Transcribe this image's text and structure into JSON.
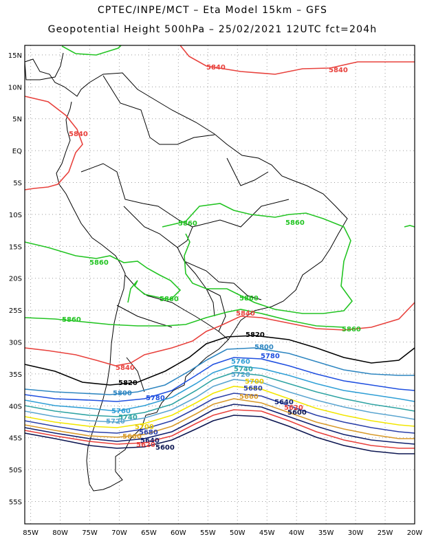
{
  "title": {
    "line1": "CPTEC/INPE/MCT –  Eta Model 15km – GFS",
    "line2": "Geopotential Height 500hPa – 25/02/2021 12UTC fct=204h"
  },
  "map": {
    "lat_ticks": [
      "15N",
      "10N",
      "5N",
      "EQ",
      "5S",
      "10S",
      "15S",
      "20S",
      "25S",
      "30S",
      "35S",
      "40S",
      "45S",
      "50S",
      "55S"
    ],
    "lon_ticks": [
      "85W",
      "80W",
      "75W",
      "70W",
      "65W",
      "60W",
      "55W",
      "50W",
      "45W",
      "40W",
      "35W",
      "30W",
      "25W",
      "20W"
    ],
    "extent": {
      "lon": [
        -86,
        -20
      ],
      "lat": [
        -58.5,
        16.5
      ]
    },
    "colors": {
      "land_border": "#000000",
      "grid": "#9a9a9a",
      "frame": "#000000"
    },
    "contours": [
      {
        "value": 5840,
        "color": "#e8413c",
        "labels": [
          "5840",
          "5840",
          "5840",
          "5840",
          "5840"
        ]
      },
      {
        "value": 5860,
        "color": "#22c422",
        "labels": [
          "5860",
          "5860",
          "5860",
          "5860",
          "5860",
          "5860",
          "5860",
          "5860"
        ]
      },
      {
        "value": 5820,
        "color": "#000000",
        "labels": [
          "5820",
          "5820"
        ]
      },
      {
        "value": 5800,
        "color": "#2e86c1",
        "labels": [
          "5800",
          "5800"
        ]
      },
      {
        "value": 5780,
        "color": "#1f4fe0",
        "labels": [
          "5780",
          "5780"
        ]
      },
      {
        "value": 5760,
        "color": "#2f9fd6",
        "labels": [
          "5760",
          "5760"
        ]
      },
      {
        "value": 5740,
        "color": "#2ea3a3",
        "labels": [
          "5740",
          "5740"
        ]
      },
      {
        "value": 5720,
        "color": "#5aa5d0",
        "labels": [
          "5720",
          "5720"
        ]
      },
      {
        "value": 5700,
        "color": "#f2e600",
        "labels": [
          "5700",
          "5700"
        ]
      },
      {
        "value": 5680,
        "color": "#2a3fa8",
        "labels": [
          "5680",
          "5680"
        ]
      },
      {
        "value": 5660,
        "color": "#d89a2a",
        "labels": [
          "5660",
          "5660"
        ]
      },
      {
        "value": 5640,
        "color": "#10206e",
        "labels": [
          "5640",
          "5640"
        ]
      },
      {
        "value": 5620,
        "color": "#e8413c",
        "labels": [
          "5620",
          "5620"
        ]
      },
      {
        "value": 5600,
        "color": "#0b1550",
        "labels": [
          "5600",
          "5600"
        ]
      }
    ]
  }
}
